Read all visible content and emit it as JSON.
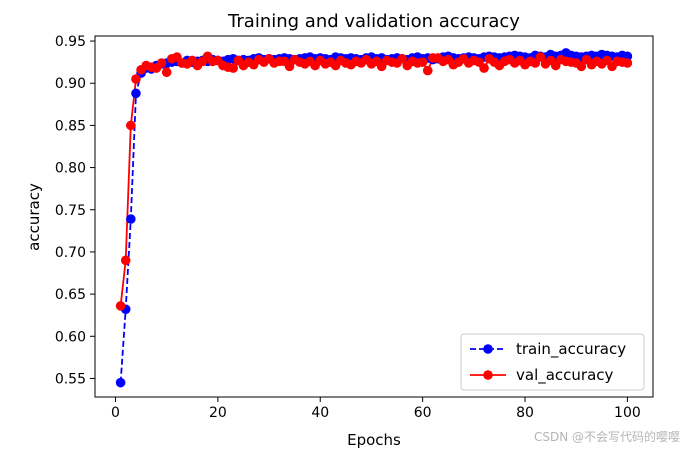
{
  "chart_data": {
    "type": "line",
    "title": "Training and validation accuracy",
    "xlabel": "Epochs",
    "ylabel": "accuracy",
    "xlim": [
      -4,
      105
    ],
    "ylim": [
      0.528,
      0.956
    ],
    "xticks": [
      0,
      20,
      40,
      60,
      80,
      100
    ],
    "yticks": [
      0.55,
      0.6,
      0.65,
      0.7,
      0.75,
      0.8,
      0.85,
      0.9,
      0.95
    ],
    "ytick_labels": [
      "0.55",
      "0.60",
      "0.65",
      "0.70",
      "0.75",
      "0.80",
      "0.85",
      "0.90",
      "0.95"
    ],
    "grid": false,
    "legend_position": "lower-right",
    "series": [
      {
        "name": "train_accuracy",
        "color": "#0000ff",
        "line_style": "dashed",
        "marker": "circle",
        "x": [
          1,
          2,
          3,
          4,
          5,
          6,
          7,
          8,
          9,
          10,
          11,
          12,
          13,
          14,
          15,
          16,
          17,
          18,
          19,
          20,
          21,
          22,
          23,
          24,
          25,
          26,
          27,
          28,
          29,
          30,
          31,
          32,
          33,
          34,
          35,
          36,
          37,
          38,
          39,
          40,
          41,
          42,
          43,
          44,
          45,
          46,
          47,
          48,
          49,
          50,
          51,
          52,
          53,
          54,
          55,
          56,
          57,
          58,
          59,
          60,
          61,
          62,
          63,
          64,
          65,
          66,
          67,
          68,
          69,
          70,
          71,
          72,
          73,
          74,
          75,
          76,
          77,
          78,
          79,
          80,
          81,
          82,
          83,
          84,
          85,
          86,
          87,
          88,
          89,
          90,
          91,
          92,
          93,
          94,
          95,
          96,
          97,
          98,
          99,
          100
        ],
        "values": [
          0.545,
          0.632,
          0.739,
          0.888,
          0.912,
          0.918,
          0.917,
          0.921,
          0.923,
          0.924,
          0.925,
          0.926,
          0.924,
          0.927,
          0.925,
          0.926,
          0.927,
          0.926,
          0.928,
          0.927,
          0.926,
          0.928,
          0.929,
          0.927,
          0.928,
          0.927,
          0.929,
          0.93,
          0.928,
          0.929,
          0.928,
          0.929,
          0.93,
          0.929,
          0.928,
          0.929,
          0.93,
          0.931,
          0.929,
          0.93,
          0.929,
          0.928,
          0.931,
          0.93,
          0.929,
          0.93,
          0.929,
          0.928,
          0.93,
          0.931,
          0.929,
          0.93,
          0.928,
          0.929,
          0.93,
          0.929,
          0.928,
          0.93,
          0.931,
          0.929,
          0.93,
          0.928,
          0.929,
          0.931,
          0.932,
          0.93,
          0.929,
          0.93,
          0.931,
          0.93,
          0.929,
          0.931,
          0.932,
          0.931,
          0.93,
          0.931,
          0.932,
          0.933,
          0.932,
          0.931,
          0.93,
          0.933,
          0.932,
          0.931,
          0.934,
          0.932,
          0.933,
          0.936,
          0.933,
          0.932,
          0.931,
          0.932,
          0.933,
          0.932,
          0.934,
          0.933,
          0.932,
          0.931,
          0.933,
          0.932
        ]
      },
      {
        "name": "val_accuracy",
        "color": "#ff0000",
        "line_style": "solid",
        "marker": "circle",
        "x": [
          1,
          2,
          3,
          4,
          5,
          6,
          7,
          8,
          9,
          10,
          11,
          12,
          13,
          14,
          15,
          16,
          17,
          18,
          19,
          20,
          21,
          22,
          23,
          24,
          25,
          26,
          27,
          28,
          29,
          30,
          31,
          32,
          33,
          34,
          35,
          36,
          37,
          38,
          39,
          40,
          41,
          42,
          43,
          44,
          45,
          46,
          47,
          48,
          49,
          50,
          51,
          52,
          53,
          54,
          55,
          56,
          57,
          58,
          59,
          60,
          61,
          62,
          63,
          64,
          65,
          66,
          67,
          68,
          69,
          70,
          71,
          72,
          73,
          74,
          75,
          76,
          77,
          78,
          79,
          80,
          81,
          82,
          83,
          84,
          85,
          86,
          87,
          88,
          89,
          90,
          91,
          92,
          93,
          94,
          95,
          96,
          97,
          98,
          99,
          100
        ],
        "values": [
          0.636,
          0.69,
          0.85,
          0.905,
          0.916,
          0.921,
          0.919,
          0.918,
          0.924,
          0.913,
          0.929,
          0.931,
          0.924,
          0.923,
          0.927,
          0.921,
          0.926,
          0.932,
          0.926,
          0.927,
          0.921,
          0.919,
          0.918,
          0.927,
          0.921,
          0.925,
          0.922,
          0.928,
          0.925,
          0.929,
          0.924,
          0.926,
          0.926,
          0.92,
          0.928,
          0.925,
          0.923,
          0.926,
          0.921,
          0.927,
          0.923,
          0.925,
          0.921,
          0.927,
          0.924,
          0.922,
          0.926,
          0.924,
          0.928,
          0.923,
          0.926,
          0.92,
          0.927,
          0.925,
          0.924,
          0.929,
          0.921,
          0.926,
          0.924,
          0.925,
          0.915,
          0.93,
          0.93,
          0.926,
          0.928,
          0.922,
          0.925,
          0.929,
          0.924,
          0.927,
          0.925,
          0.918,
          0.929,
          0.925,
          0.921,
          0.926,
          0.928,
          0.924,
          0.927,
          0.922,
          0.926,
          0.924,
          0.931,
          0.923,
          0.927,
          0.921,
          0.928,
          0.926,
          0.925,
          0.924,
          0.92,
          0.928,
          0.922,
          0.926,
          0.923,
          0.927,
          0.92,
          0.926,
          0.925,
          0.924
        ]
      }
    ]
  },
  "watermark": "CSDN @不会写代码的嘤嘤"
}
